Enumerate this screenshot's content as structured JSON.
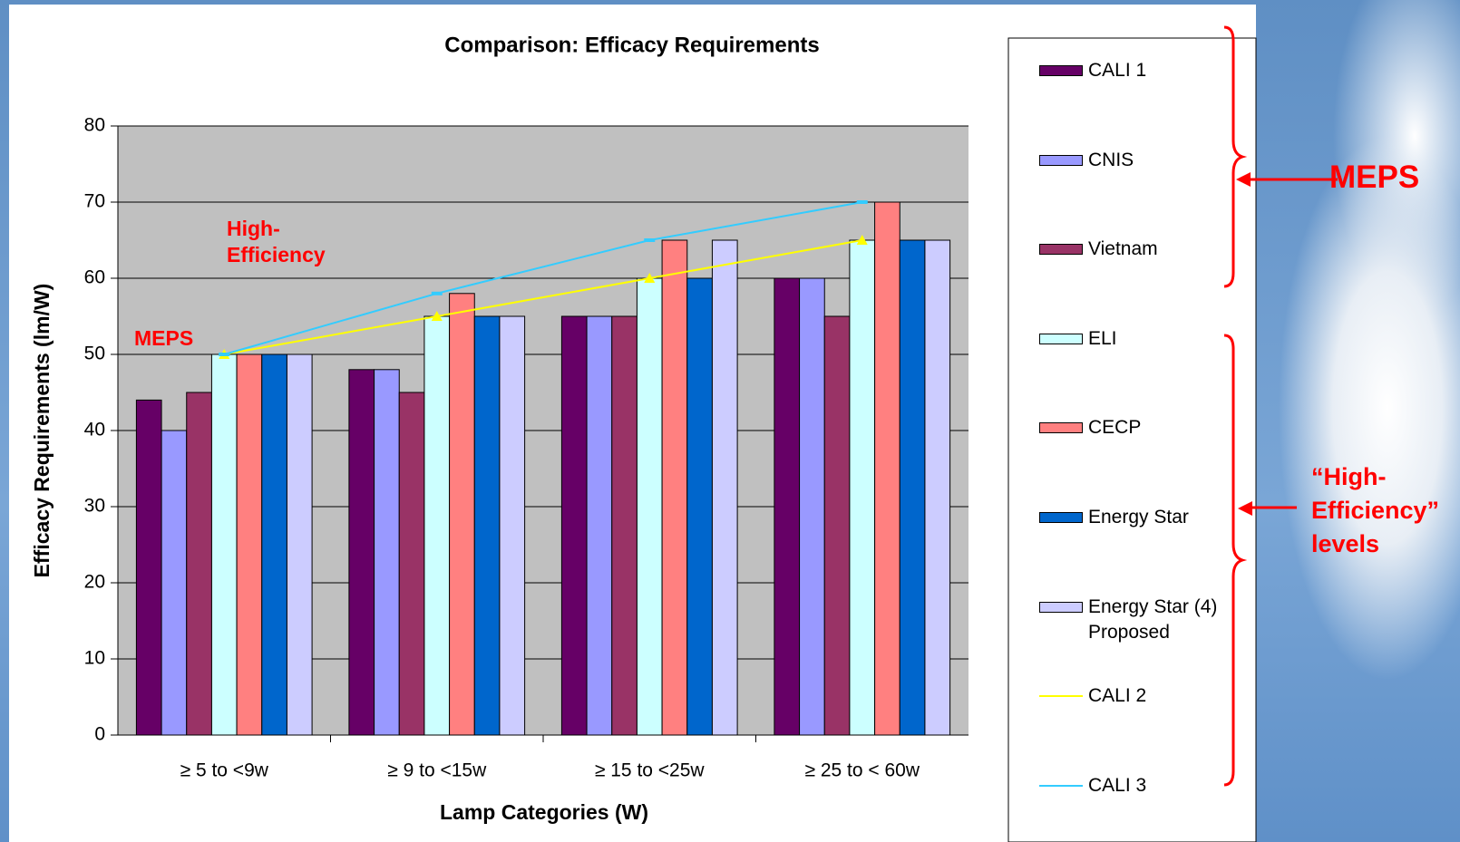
{
  "chart_data": {
    "type": "bar",
    "title": "Comparison: Efficacy Requirements",
    "x_label": "Lamp Categories (W)",
    "y_label": "Efficacy Requirements (lm/W)",
    "categories": [
      "≥ 5 to <9w",
      "≥ 9 to <15w",
      "≥ 15 to <25w",
      "≥ 25 to < 60w"
    ],
    "series": [
      {
        "name": "CALI 1",
        "color": "#660066",
        "values": [
          44,
          48,
          55,
          60
        ]
      },
      {
        "name": "CNIS",
        "color": "#9999ff",
        "values": [
          40,
          48,
          55,
          60
        ]
      },
      {
        "name": "Vietnam",
        "color": "#993366",
        "values": [
          45,
          45,
          55,
          55
        ]
      },
      {
        "name": "ELI",
        "color": "#ccffff",
        "values": [
          50,
          55,
          60,
          65
        ]
      },
      {
        "name": "CECP",
        "color": "#ff8080",
        "values": [
          50,
          58,
          65,
          70
        ]
      },
      {
        "name": "Energy Star",
        "color": "#0066cc",
        "values": [
          50,
          55,
          60,
          65
        ]
      },
      {
        "name": "Energy Star (4) Proposed",
        "color": "#ccccff",
        "values": [
          50,
          55,
          65,
          65
        ]
      },
      {
        "name": "CALI 2",
        "color": "#ffff00",
        "type": "line",
        "values": [
          50,
          55,
          60,
          65
        ]
      },
      {
        "name": "CALI 3",
        "color": "#33ccff",
        "type": "line",
        "values": [
          50,
          58,
          65,
          70
        ]
      }
    ],
    "ylim": [
      0,
      80
    ],
    "yticks": [
      0,
      10,
      20,
      30,
      40,
      50,
      60,
      70,
      80
    ],
    "grid": true,
    "plot_background": "#c0c0c0",
    "annotations": [
      {
        "text": "MEPS"
      },
      {
        "text": "High-Efficiency"
      },
      {
        "text": "MEPS"
      },
      {
        "text": "“High-Efficiency” levels"
      }
    ]
  }
}
